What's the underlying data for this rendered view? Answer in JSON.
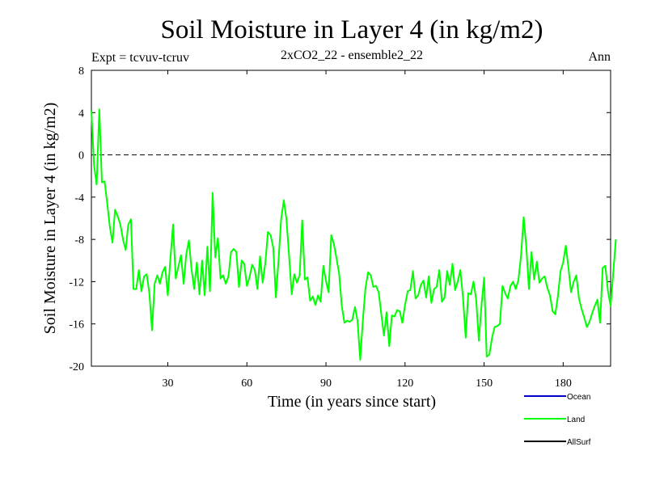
{
  "chart_data": {
    "type": "line",
    "title": "Soil Moisture in Layer 4 (in kg/m2)",
    "subtitle": "2xCO2_22 - ensemble2_22",
    "left_note": "Expt = tcvuv-tcruv",
    "right_note": "Ann",
    "xlabel": "Time (in years since start)",
    "ylabel": "Soil Moisture in Layer 4 (in kg/m2)",
    "xlim": [
      1,
      198
    ],
    "ylim": [
      -20,
      8
    ],
    "xticks": [
      30,
      60,
      90,
      120,
      150,
      180
    ],
    "yticks": [
      8,
      4,
      0,
      -4,
      -8,
      -12,
      -16,
      -20
    ],
    "reference_line": {
      "y": 0,
      "style": "dashed"
    },
    "grid": false,
    "legend_position": "bottom-right",
    "legend": [
      {
        "name": "Ocean",
        "color": "#0000cc"
      },
      {
        "name": "Land",
        "color": "#00ff00"
      },
      {
        "name": "AllSurf",
        "color": "#000000"
      }
    ],
    "series": [
      {
        "name": "Land",
        "color": "#00ff00",
        "x_start": 1,
        "x_step": 1,
        "values": [
          4.2,
          -1.0,
          -2.8,
          4.3,
          -2.6,
          -2.5,
          -4.6,
          -6.8,
          -8.3,
          -5.2,
          -5.8,
          -6.6,
          -8.0,
          -9.0,
          -6.6,
          -6.1,
          -12.7,
          -12.7,
          -10.9,
          -12.9,
          -11.5,
          -11.3,
          -13.1,
          -16.6,
          -12.2,
          -11.4,
          -12.2,
          -11.1,
          -10.6,
          -13.3,
          -9.7,
          -6.6,
          -11.7,
          -10.6,
          -9.5,
          -12.2,
          -9.4,
          -8.1,
          -10.8,
          -12.7,
          -10.2,
          -13.2,
          -10.0,
          -13.3,
          -8.7,
          -12.9,
          -3.6,
          -9.7,
          -7.9,
          -11.7,
          -11.4,
          -12.2,
          -11.5,
          -9.2,
          -8.9,
          -9.2,
          -12.5,
          -10.0,
          -10.3,
          -12.4,
          -11.6,
          -10.4,
          -10.9,
          -12.7,
          -9.6,
          -12.1,
          -10.2,
          -7.3,
          -7.6,
          -8.8,
          -13.5,
          -10.0,
          -6.1,
          -4.3,
          -6.1,
          -9.5,
          -13.2,
          -11.3,
          -12.1,
          -11.4,
          -6.2,
          -11.8,
          -11.6,
          -13.8,
          -13.4,
          -14.2,
          -13.3,
          -13.9,
          -10.5,
          -11.9,
          -13.0,
          -7.6,
          -8.4,
          -9.8,
          -11.2,
          -14.3,
          -15.9,
          -15.7,
          -15.8,
          -15.6,
          -14.4,
          -15.7,
          -19.4,
          -15.6,
          -12.6,
          -11.1,
          -11.4,
          -12.5,
          -12.4,
          -13.0,
          -15.1,
          -17.1,
          -14.9,
          -18.1,
          -15.2,
          -15.3,
          -14.7,
          -14.8,
          -15.9,
          -14.2,
          -12.9,
          -12.8,
          -11.0,
          -13.6,
          -13.3,
          -12.3,
          -11.9,
          -13.5,
          -11.5,
          -14.0,
          -12.7,
          -12.5,
          -10.9,
          -13.9,
          -13.5,
          -11.0,
          -12.3,
          -10.3,
          -12.8,
          -12.0,
          -10.9,
          -13.5,
          -17.3,
          -13.1,
          -13.2,
          -12.0,
          -13.7,
          -17.6,
          -14.3,
          -11.6,
          -19.1,
          -18.9,
          -17.3,
          -16.3,
          -16.2,
          -16.0,
          -12.4,
          -13.1,
          -13.6,
          -12.4,
          -12.0,
          -12.7,
          -11.9,
          -9.6,
          -5.9,
          -8.6,
          -12.7,
          -9.2,
          -11.8,
          -10.1,
          -12.1,
          -11.7,
          -11.5,
          -12.6,
          -13.3,
          -14.8,
          -15.1,
          -13.4,
          -11.0,
          -10.2,
          -8.6,
          -10.7,
          -13.0,
          -12.0,
          -11.4,
          -13.6,
          -14.6,
          -15.4,
          -16.3,
          -15.8,
          -15.0,
          -14.3,
          -13.7,
          -15.9,
          -10.7,
          -10.5,
          -12.9,
          -14.3,
          -11.1,
          -8.0
        ]
      }
    ]
  }
}
